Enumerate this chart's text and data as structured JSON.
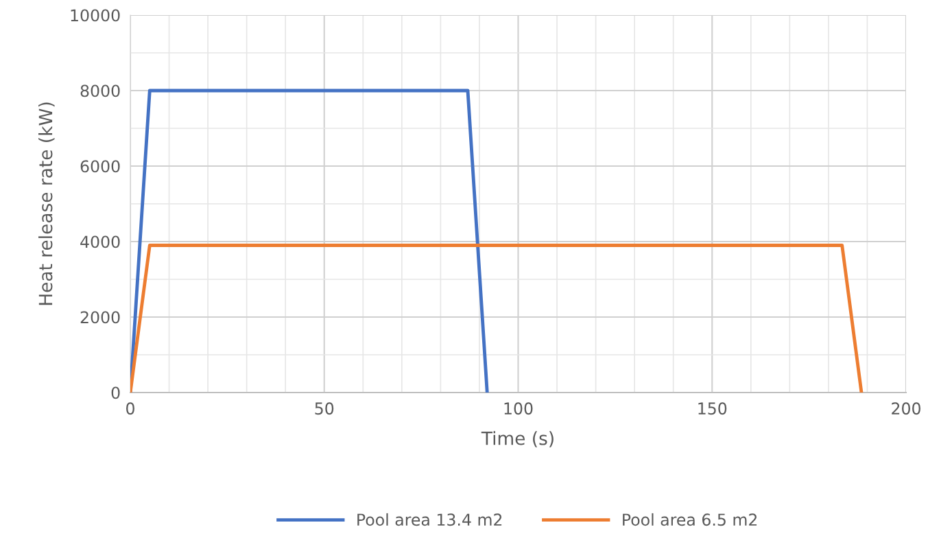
{
  "chart_data": {
    "type": "line",
    "xlabel": "Time (s)",
    "ylabel": "Heat release rate (kW)",
    "xlim": [
      0,
      200
    ],
    "xticks": [
      0,
      50,
      100,
      150,
      200
    ],
    "ylim": [
      0,
      10000
    ],
    "yticks": [
      0,
      2000,
      4000,
      6000,
      8000,
      10000
    ],
    "grid": true,
    "legend": "bottom",
    "marker": "none",
    "line_style": "solid",
    "series": [
      {
        "name": "Pool area 13.4 m2",
        "color": "#4472c4",
        "x": [
          0,
          5,
          87,
          92
        ],
        "values": [
          0,
          8000,
          8000,
          0
        ]
      },
      {
        "name": "Pool area 6.5 m2",
        "color": "#ed7d31",
        "x": [
          0,
          5,
          183.5,
          188.5
        ],
        "values": [
          0,
          3900,
          3900,
          0
        ]
      }
    ]
  }
}
